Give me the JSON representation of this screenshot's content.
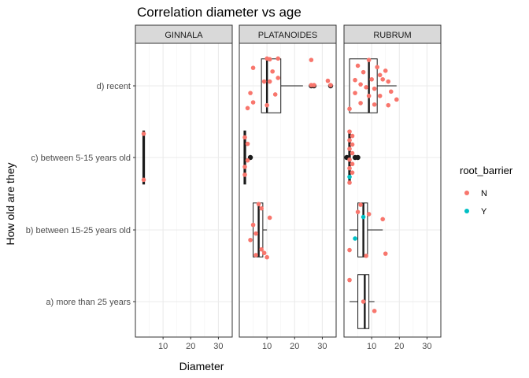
{
  "chart_data": {
    "type": "scatter",
    "title": "Correlation diameter vs age",
    "xlabel": "Diameter",
    "ylabel": "How old are they",
    "xlim": [
      0,
      35
    ],
    "x_ticks": [
      10,
      20,
      30
    ],
    "categories": [
      "a) more than 25 years",
      "b) between 15-25 years old",
      "c) between 5-15 years old",
      "d) recent"
    ],
    "legend": {
      "title": "root_barrier",
      "placement": "right",
      "entries": [
        {
          "label": "N",
          "color": "#F8766D"
        },
        {
          "label": "Y",
          "color": "#00BFC4"
        }
      ]
    },
    "panels": [
      {
        "label": "GINNALA",
        "boxes": [
          {
            "category": "c) between 5-15 years old",
            "min": 3,
            "q1": 3,
            "median": 3,
            "q3": 3,
            "max": 3
          }
        ],
        "outliers": [],
        "points": [
          {
            "category": "c) between 5-15 years old",
            "x": 3,
            "jitter": 0.33,
            "rb": "N"
          },
          {
            "category": "c) between 5-15 years old",
            "x": 3,
            "jitter": -0.31,
            "rb": "N"
          }
        ]
      },
      {
        "label": "PLATANOIDES",
        "boxes": [
          {
            "category": "d) recent",
            "min": 8,
            "q1": 8,
            "median": 10,
            "q3": 15,
            "max": 23
          },
          {
            "category": "c) between 5-15 years old",
            "min": 2,
            "q1": 2,
            "median": 2,
            "q3": 2,
            "max": 2
          },
          {
            "category": "b) between 15-25 years old",
            "min": 5,
            "q1": 5,
            "median": 7,
            "q3": 8.5,
            "max": 10
          }
        ],
        "outliers": [
          {
            "category": "d) recent",
            "x": 26
          },
          {
            "category": "d) recent",
            "x": 27
          },
          {
            "category": "d) recent",
            "x": 33
          },
          {
            "category": "c) between 5-15 years old",
            "x": 4
          }
        ],
        "points": [
          {
            "category": "d) recent",
            "x": 10,
            "jitter": 0.38,
            "rb": "N"
          },
          {
            "category": "d) recent",
            "x": 11,
            "jitter": 0.37,
            "rb": "N"
          },
          {
            "category": "d) recent",
            "x": 14,
            "jitter": 0.38,
            "rb": "N"
          },
          {
            "category": "d) recent",
            "x": 26,
            "jitter": 0.36,
            "rb": "N"
          },
          {
            "category": "d) recent",
            "x": 5,
            "jitter": 0.25,
            "rb": "N"
          },
          {
            "category": "d) recent",
            "x": 12,
            "jitter": 0.2,
            "rb": "N"
          },
          {
            "category": "d) recent",
            "x": 32,
            "jitter": 0.07,
            "rb": "N"
          },
          {
            "category": "d) recent",
            "x": 9,
            "jitter": 0.06,
            "rb": "N"
          },
          {
            "category": "d) recent",
            "x": 11,
            "jitter": 0.06,
            "rb": "N"
          },
          {
            "category": "d) recent",
            "x": 14,
            "jitter": 0.11,
            "rb": "N"
          },
          {
            "category": "d) recent",
            "x": 26,
            "jitter": 0.01,
            "rb": "N"
          },
          {
            "category": "d) recent",
            "x": 27,
            "jitter": 0.01,
            "rb": "N"
          },
          {
            "category": "d) recent",
            "x": 33,
            "jitter": 0.01,
            "rb": "N"
          },
          {
            "category": "d) recent",
            "x": 4,
            "jitter": -0.1,
            "rb": "N"
          },
          {
            "category": "d) recent",
            "x": 13,
            "jitter": -0.12,
            "rb": "N"
          },
          {
            "category": "d) recent",
            "x": 5,
            "jitter": -0.23,
            "rb": "N"
          },
          {
            "category": "d) recent",
            "x": 10,
            "jitter": -0.27,
            "rb": "N"
          },
          {
            "category": "d) recent",
            "x": 3,
            "jitter": -0.31,
            "rb": "N"
          },
          {
            "category": "c) between 5-15 years old",
            "x": 2,
            "jitter": 0.28,
            "rb": "N"
          },
          {
            "category": "c) between 5-15 years old",
            "x": 3,
            "jitter": 0.19,
            "rb": "N"
          },
          {
            "category": "c) between 5-15 years old",
            "x": 3,
            "jitter": -0.04,
            "rb": "N"
          },
          {
            "category": "c) between 5-15 years old",
            "x": 2,
            "jitter": -0.13,
            "rb": "N"
          },
          {
            "category": "c) between 5-15 years old",
            "x": 2,
            "jitter": -0.24,
            "rb": "N"
          },
          {
            "category": "b) between 15-25 years old",
            "x": 7,
            "jitter": 0.36,
            "rb": "N"
          },
          {
            "category": "b) between 15-25 years old",
            "x": 8,
            "jitter": 0.3,
            "rb": "N"
          },
          {
            "category": "b) between 15-25 years old",
            "x": 11,
            "jitter": 0.17,
            "rb": "N"
          },
          {
            "category": "b) between 15-25 years old",
            "x": 5,
            "jitter": 0.07,
            "rb": "N"
          },
          {
            "category": "b) between 15-25 years old",
            "x": 6,
            "jitter": -0.05,
            "rb": "N"
          },
          {
            "category": "b) between 15-25 years old",
            "x": 4,
            "jitter": -0.14,
            "rb": "N"
          },
          {
            "category": "b) between 15-25 years old",
            "x": 8,
            "jitter": -0.27,
            "rb": "N"
          },
          {
            "category": "b) between 15-25 years old",
            "x": 9,
            "jitter": -0.32,
            "rb": "N"
          },
          {
            "category": "b) between 15-25 years old",
            "x": 6,
            "jitter": -0.35,
            "rb": "N"
          },
          {
            "category": "b) between 15-25 years old",
            "x": 10,
            "jitter": -0.38,
            "rb": "N"
          }
        ]
      },
      {
        "label": "RUBRUM",
        "boxes": [
          {
            "category": "d) recent",
            "min": 2,
            "q1": 2,
            "median": 9,
            "q3": 12,
            "max": 19
          },
          {
            "category": "c) between 5-15 years old",
            "min": 2,
            "q1": 2,
            "median": 2,
            "q3": 2,
            "max": 2
          },
          {
            "category": "b) between 15-25 years old",
            "min": 2,
            "q1": 5,
            "median": 7,
            "q3": 8.5,
            "max": 14
          },
          {
            "category": "a) more than 25 years",
            "min": 2,
            "q1": 5,
            "median": 7.5,
            "q3": 9,
            "max": 11
          }
        ],
        "outliers": [
          {
            "category": "c) between 5-15 years old",
            "x": 1
          },
          {
            "category": "c) between 5-15 years old",
            "x": 4
          },
          {
            "category": "c) between 5-15 years old",
            "x": 5
          }
        ],
        "points": [
          {
            "category": "d) recent",
            "x": 9,
            "jitter": 0.36,
            "rb": "N"
          },
          {
            "category": "d) recent",
            "x": 5,
            "jitter": 0.28,
            "rb": "N"
          },
          {
            "category": "d) recent",
            "x": 12,
            "jitter": 0.26,
            "rb": "N"
          },
          {
            "category": "d) recent",
            "x": 15,
            "jitter": 0.21,
            "rb": "N"
          },
          {
            "category": "d) recent",
            "x": 7,
            "jitter": 0.19,
            "rb": "N"
          },
          {
            "category": "d) recent",
            "x": 13,
            "jitter": 0.15,
            "rb": "N"
          },
          {
            "category": "d) recent",
            "x": 4,
            "jitter": 0.08,
            "rb": "N"
          },
          {
            "category": "d) recent",
            "x": 10,
            "jitter": 0.09,
            "rb": "N"
          },
          {
            "category": "d) recent",
            "x": 14,
            "jitter": 0.09,
            "rb": "N"
          },
          {
            "category": "d) recent",
            "x": 16,
            "jitter": 0.06,
            "rb": "N"
          },
          {
            "category": "d) recent",
            "x": 6,
            "jitter": 0.02,
            "rb": "N"
          },
          {
            "category": "d) recent",
            "x": 8,
            "jitter": -0.02,
            "rb": "N"
          },
          {
            "category": "d) recent",
            "x": 11,
            "jitter": -0.04,
            "rb": "N"
          },
          {
            "category": "d) recent",
            "x": 17,
            "jitter": -0.08,
            "rb": "N"
          },
          {
            "category": "d) recent",
            "x": 4,
            "jitter": -0.1,
            "rb": "N"
          },
          {
            "category": "d) recent",
            "x": 9,
            "jitter": -0.14,
            "rb": "N"
          },
          {
            "category": "d) recent",
            "x": 13,
            "jitter": -0.14,
            "rb": "N"
          },
          {
            "category": "d) recent",
            "x": 19,
            "jitter": -0.19,
            "rb": "N"
          },
          {
            "category": "d) recent",
            "x": 6,
            "jitter": -0.24,
            "rb": "N"
          },
          {
            "category": "d) recent",
            "x": 11,
            "jitter": -0.26,
            "rb": "N"
          },
          {
            "category": "d) recent",
            "x": 16,
            "jitter": -0.27,
            "rb": "N"
          },
          {
            "category": "d) recent",
            "x": 2,
            "jitter": -0.32,
            "rb": "N"
          },
          {
            "category": "c) between 5-15 years old",
            "x": 2,
            "jitter": 0.36,
            "rb": "N"
          },
          {
            "category": "c) between 5-15 years old",
            "x": 3,
            "jitter": 0.3,
            "rb": "N"
          },
          {
            "category": "c) between 5-15 years old",
            "x": 2,
            "jitter": 0.24,
            "rb": "N"
          },
          {
            "category": "c) between 5-15 years old",
            "x": 3,
            "jitter": 0.18,
            "rb": "N"
          },
          {
            "category": "c) between 5-15 years old",
            "x": 2,
            "jitter": 0.12,
            "rb": "N"
          },
          {
            "category": "c) between 5-15 years old",
            "x": 3,
            "jitter": 0.06,
            "rb": "N"
          },
          {
            "category": "c) between 5-15 years old",
            "x": 2,
            "jitter": -0.03,
            "rb": "N"
          },
          {
            "category": "c) between 5-15 years old",
            "x": 3,
            "jitter": -0.09,
            "rb": "N"
          },
          {
            "category": "c) between 5-15 years old",
            "x": 2,
            "jitter": -0.15,
            "rb": "N"
          },
          {
            "category": "c) between 5-15 years old",
            "x": 3,
            "jitter": -0.21,
            "rb": "N"
          },
          {
            "category": "c) between 5-15 years old",
            "x": 2,
            "jitter": -0.27,
            "rb": "Y"
          },
          {
            "category": "c) between 5-15 years old",
            "x": 2,
            "jitter": -0.35,
            "rb": "N"
          },
          {
            "category": "b) between 15-25 years old",
            "x": 6,
            "jitter": 0.35,
            "rb": "N"
          },
          {
            "category": "b) between 15-25 years old",
            "x": 5,
            "jitter": 0.25,
            "rb": "N"
          },
          {
            "category": "b) between 15-25 years old",
            "x": 9,
            "jitter": 0.22,
            "rb": "N"
          },
          {
            "category": "b) between 15-25 years old",
            "x": 7,
            "jitter": 0.18,
            "rb": "Y"
          },
          {
            "category": "b) between 15-25 years old",
            "x": 14,
            "jitter": 0.15,
            "rb": "N"
          },
          {
            "category": "b) between 15-25 years old",
            "x": 4,
            "jitter": -0.12,
            "rb": "Y"
          },
          {
            "category": "b) between 15-25 years old",
            "x": 2,
            "jitter": -0.28,
            "rb": "N"
          },
          {
            "category": "b) between 15-25 years old",
            "x": 15,
            "jitter": -0.33,
            "rb": "N"
          },
          {
            "category": "b) between 15-25 years old",
            "x": 8,
            "jitter": -0.36,
            "rb": "N"
          },
          {
            "category": "a) more than 25 years",
            "x": 2,
            "jitter": 0.3,
            "rb": "N"
          },
          {
            "category": "a) more than 25 years",
            "x": 7,
            "jitter": 0.0,
            "rb": "N"
          },
          {
            "category": "a) more than 25 years",
            "x": 11,
            "jitter": -0.13,
            "rb": "N"
          }
        ]
      }
    ]
  }
}
